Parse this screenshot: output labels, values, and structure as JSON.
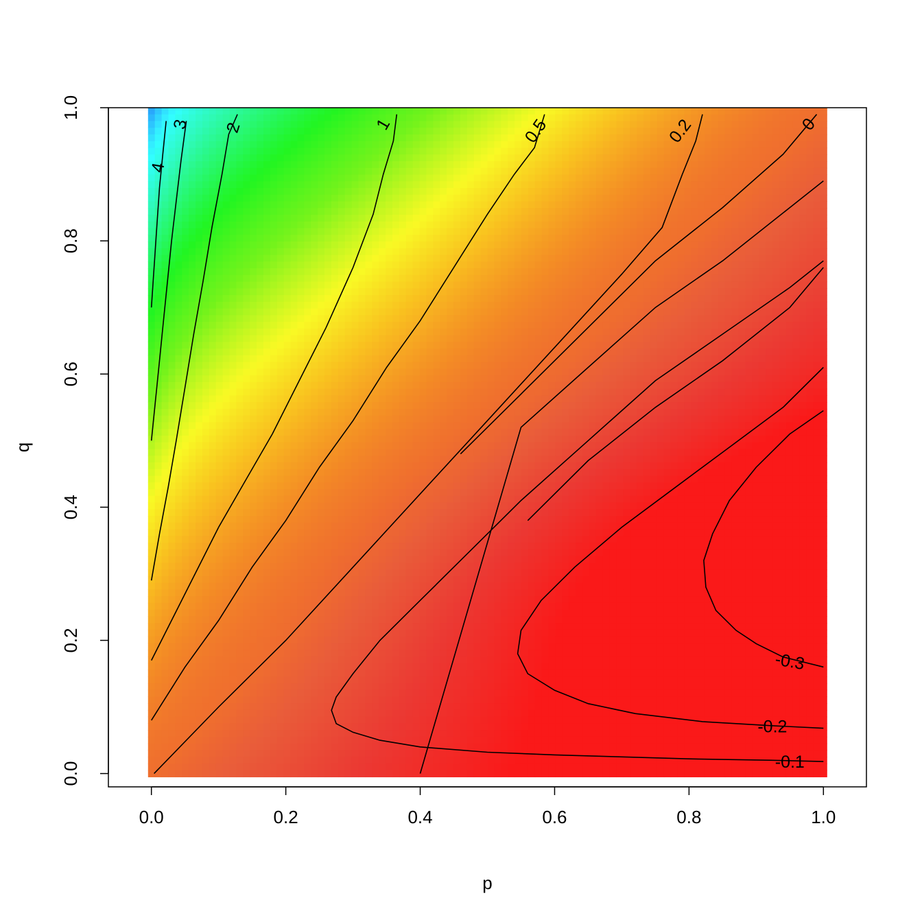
{
  "chart_data": {
    "type": "heatmap",
    "title": "",
    "xlabel": "p",
    "ylabel": "q",
    "xlim": [
      -0.064,
      1.064
    ],
    "ylim": [
      -0.02,
      1.0
    ],
    "x_ticks": [
      "0.0",
      "0.2",
      "0.4",
      "0.6",
      "0.8",
      "1.0"
    ],
    "y_ticks": [
      "0.0",
      "0.2",
      "0.4",
      "0.6",
      "0.8",
      "1.0"
    ],
    "grid": false,
    "legend": "none",
    "colormap": "rainbow",
    "contours": [
      {
        "label": "4",
        "points": [
          [
            0.0,
            0.7
          ],
          [
            0.004,
            0.76
          ],
          [
            0.008,
            0.82
          ],
          [
            0.012,
            0.88
          ],
          [
            0.017,
            0.93
          ],
          [
            0.022,
            0.98
          ]
        ]
      },
      {
        "label": "3",
        "points": [
          [
            0.0,
            0.5
          ],
          [
            0.006,
            0.56
          ],
          [
            0.012,
            0.62
          ],
          [
            0.018,
            0.68
          ],
          [
            0.024,
            0.74
          ],
          [
            0.03,
            0.8
          ],
          [
            0.037,
            0.86
          ],
          [
            0.044,
            0.92
          ],
          [
            0.052,
            0.98
          ]
        ]
      },
      {
        "label": "2",
        "points": [
          [
            0.0,
            0.29
          ],
          [
            0.012,
            0.36
          ],
          [
            0.025,
            0.43
          ],
          [
            0.037,
            0.5
          ],
          [
            0.05,
            0.58
          ],
          [
            0.063,
            0.66
          ],
          [
            0.077,
            0.74
          ],
          [
            0.09,
            0.82
          ],
          [
            0.105,
            0.9
          ],
          [
            0.115,
            0.96
          ],
          [
            0.128,
            0.99
          ]
        ]
      },
      {
        "label": "1",
        "points": [
          [
            0.0,
            0.17
          ],
          [
            0.03,
            0.23
          ],
          [
            0.06,
            0.29
          ],
          [
            0.1,
            0.37
          ],
          [
            0.14,
            0.44
          ],
          [
            0.18,
            0.51
          ],
          [
            0.22,
            0.59
          ],
          [
            0.26,
            0.67
          ],
          [
            0.3,
            0.76
          ],
          [
            0.33,
            0.84
          ],
          [
            0.345,
            0.9
          ],
          [
            0.36,
            0.95
          ],
          [
            0.365,
            0.99
          ]
        ]
      },
      {
        "label": "0.5",
        "points": [
          [
            0.0,
            0.08
          ],
          [
            0.05,
            0.16
          ],
          [
            0.1,
            0.23
          ],
          [
            0.15,
            0.31
          ],
          [
            0.2,
            0.38
          ],
          [
            0.25,
            0.46
          ],
          [
            0.3,
            0.53
          ],
          [
            0.35,
            0.61
          ],
          [
            0.4,
            0.68
          ],
          [
            0.45,
            0.76
          ],
          [
            0.5,
            0.84
          ],
          [
            0.54,
            0.9
          ],
          [
            0.57,
            0.94
          ],
          [
            0.585,
            0.99
          ]
        ]
      },
      {
        "label": "0.2",
        "points": [
          [
            0.004,
            0.0
          ],
          [
            0.1,
            0.1
          ],
          [
            0.2,
            0.2
          ],
          [
            0.3,
            0.31
          ],
          [
            0.4,
            0.42
          ],
          [
            0.5,
            0.53
          ],
          [
            0.6,
            0.64
          ],
          [
            0.7,
            0.75
          ],
          [
            0.76,
            0.82
          ],
          [
            0.79,
            0.9
          ],
          [
            0.81,
            0.95
          ],
          [
            0.82,
            0.99
          ]
        ]
      },
      {
        "label": "0",
        "points": [
          [
            0.46,
            0.48
          ],
          [
            0.55,
            0.57
          ],
          [
            0.65,
            0.67
          ],
          [
            0.75,
            0.77
          ],
          [
            0.85,
            0.85
          ],
          [
            0.94,
            0.93
          ],
          [
            0.99,
            0.99
          ]
        ]
      },
      {
        "label": "",
        "points": [
          [
            0.4,
            0.0
          ],
          [
            0.55,
            0.52
          ],
          [
            0.65,
            0.61
          ],
          [
            0.75,
            0.7
          ],
          [
            0.85,
            0.77
          ],
          [
            0.95,
            0.85
          ],
          [
            1.0,
            0.89
          ]
        ]
      },
      {
        "label": "",
        "points": [
          [
            0.56,
            0.38
          ],
          [
            0.65,
            0.47
          ],
          [
            0.75,
            0.55
          ],
          [
            0.85,
            0.62
          ],
          [
            0.95,
            0.7
          ],
          [
            1.0,
            0.76
          ]
        ]
      },
      {
        "label": "-0.1",
        "points": [
          [
            1.0,
            0.018
          ],
          [
            0.92,
            0.02
          ],
          [
            0.8,
            0.022
          ],
          [
            0.7,
            0.025
          ],
          [
            0.6,
            0.028
          ],
          [
            0.5,
            0.032
          ],
          [
            0.4,
            0.04
          ],
          [
            0.34,
            0.05
          ],
          [
            0.3,
            0.062
          ],
          [
            0.275,
            0.075
          ],
          [
            0.268,
            0.095
          ],
          [
            0.275,
            0.115
          ],
          [
            0.3,
            0.15
          ],
          [
            0.34,
            0.2
          ],
          [
            0.4,
            0.26
          ],
          [
            0.48,
            0.34
          ],
          [
            0.55,
            0.41
          ],
          [
            0.65,
            0.5
          ],
          [
            0.75,
            0.59
          ],
          [
            0.85,
            0.66
          ],
          [
            0.95,
            0.73
          ],
          [
            1.0,
            0.77
          ]
        ]
      },
      {
        "label": "-0.2",
        "points": [
          [
            1.0,
            0.068
          ],
          [
            0.92,
            0.072
          ],
          [
            0.82,
            0.078
          ],
          [
            0.72,
            0.09
          ],
          [
            0.65,
            0.105
          ],
          [
            0.6,
            0.125
          ],
          [
            0.56,
            0.15
          ],
          [
            0.545,
            0.18
          ],
          [
            0.55,
            0.215
          ],
          [
            0.58,
            0.26
          ],
          [
            0.63,
            0.31
          ],
          [
            0.7,
            0.37
          ],
          [
            0.78,
            0.43
          ],
          [
            0.86,
            0.49
          ],
          [
            0.94,
            0.55
          ],
          [
            1.0,
            0.61
          ]
        ]
      },
      {
        "label": "-0.3",
        "points": [
          [
            1.0,
            0.16
          ],
          [
            0.94,
            0.175
          ],
          [
            0.9,
            0.195
          ],
          [
            0.87,
            0.215
          ],
          [
            0.84,
            0.245
          ],
          [
            0.825,
            0.28
          ],
          [
            0.822,
            0.32
          ],
          [
            0.835,
            0.36
          ],
          [
            0.86,
            0.41
          ],
          [
            0.9,
            0.46
          ],
          [
            0.95,
            0.51
          ],
          [
            1.0,
            0.545
          ]
        ]
      }
    ],
    "contour_labels": [
      {
        "text": "4",
        "x": 0.01,
        "y": 0.91,
        "angle": -80
      },
      {
        "text": "3",
        "x": 0.043,
        "y": 0.975,
        "angle": -78
      },
      {
        "text": "2",
        "x": 0.122,
        "y": 0.97,
        "angle": -72
      },
      {
        "text": "1",
        "x": 0.345,
        "y": 0.975,
        "angle": -60
      },
      {
        "text": "0.5",
        "x": 0.572,
        "y": 0.965,
        "angle": -55
      },
      {
        "text": "0.2",
        "x": 0.787,
        "y": 0.965,
        "angle": -53
      },
      {
        "text": "0",
        "x": 0.978,
        "y": 0.975,
        "angle": -50
      },
      {
        "text": "-0.3",
        "x": 0.95,
        "y": 0.168,
        "angle": 10
      },
      {
        "text": "-0.2",
        "x": 0.924,
        "y": 0.07,
        "angle": 0
      },
      {
        "text": "-0.1",
        "x": 0.95,
        "y": 0.017,
        "angle": 0
      }
    ]
  }
}
